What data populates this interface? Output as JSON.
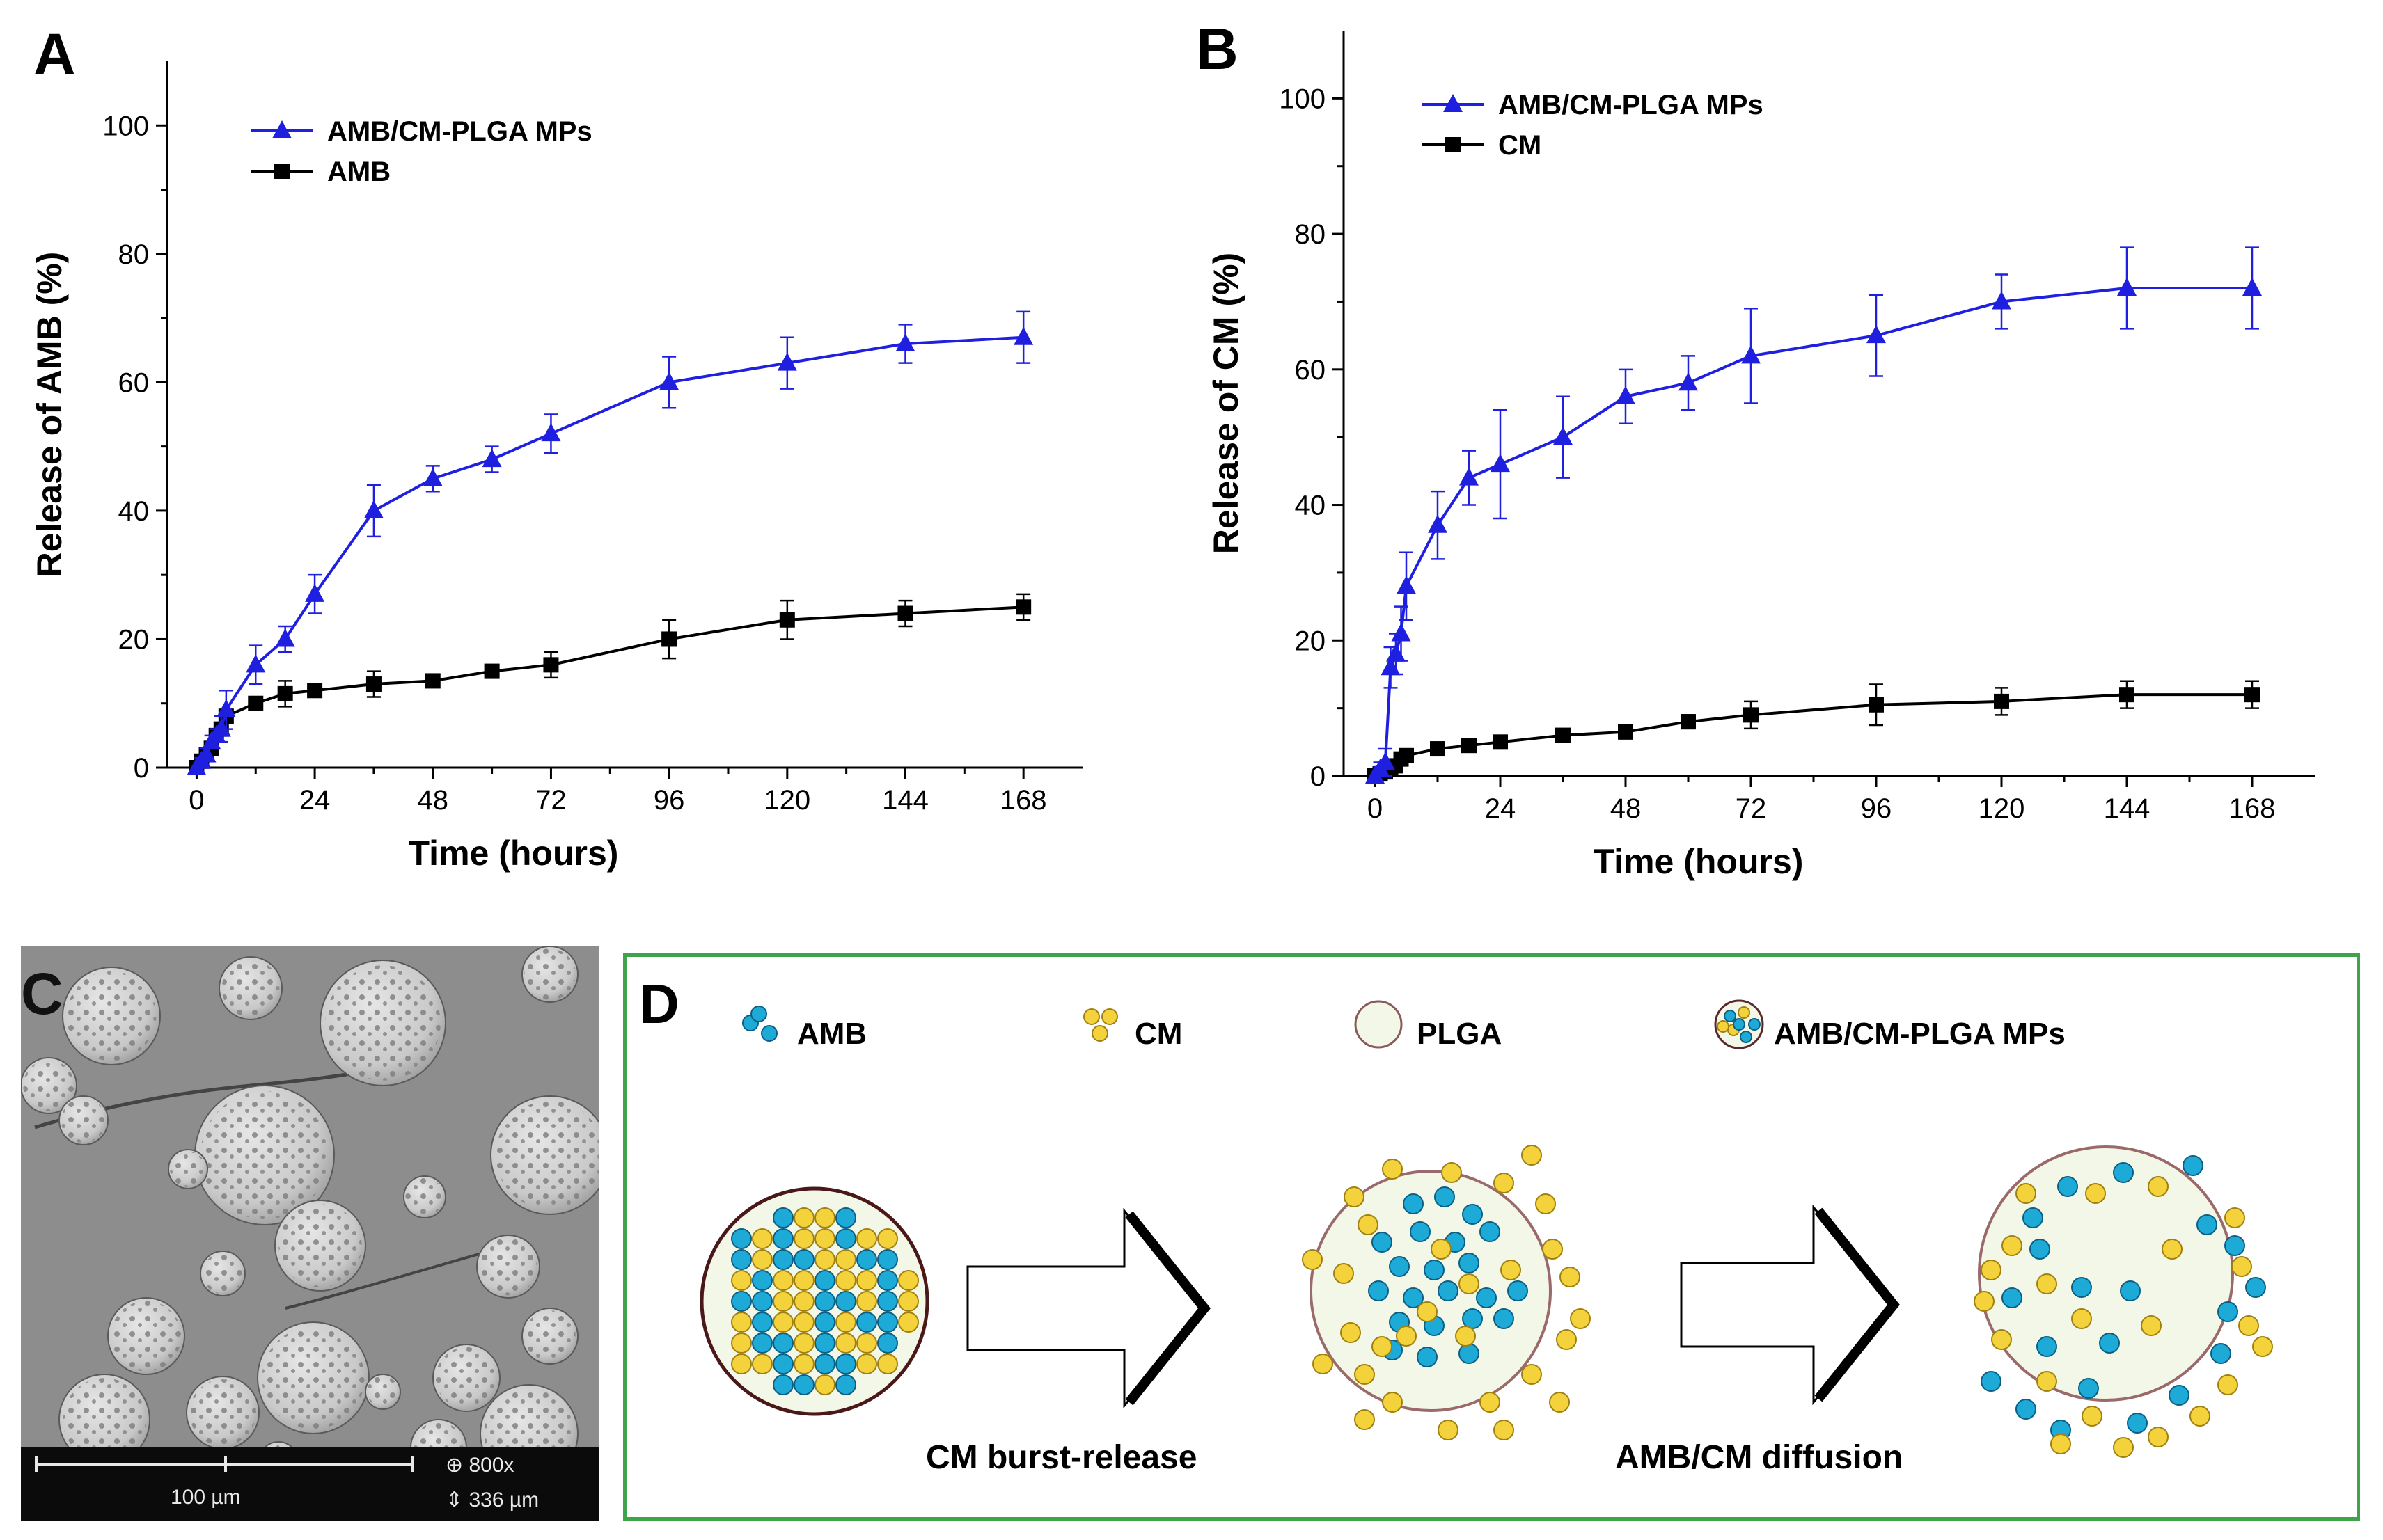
{
  "panels": {
    "a": {
      "letter": "A"
    },
    "b": {
      "letter": "B"
    },
    "c": {
      "letter": "C",
      "scale_label": "100 µm",
      "magnification": "800x",
      "field_width": "336 µm"
    },
    "d": {
      "letter": "D",
      "legend": {
        "amb": "AMB",
        "cm": "CM",
        "plga": "PLGA",
        "mps": "AMB/CM-PLGA  MPs"
      },
      "step1": "CM burst-release",
      "step2": "AMB/CM diffusion"
    }
  },
  "colors": {
    "blue_series": "#1f1fe0",
    "black_series": "#000000",
    "amb_particle": "#1eaad6",
    "cm_particle": "#f3d23c",
    "plga": "#f2f7e8",
    "frame": "#3ea34a"
  },
  "chart_data": [
    {
      "type": "line",
      "title": "",
      "xlabel": "Time (hours)",
      "ylabel": "Release of AMB (%)",
      "xlim": [
        -6,
        180
      ],
      "ylim": [
        0,
        110
      ],
      "xticks": [
        0,
        24,
        48,
        72,
        96,
        120,
        144,
        168
      ],
      "yticks": [
        0,
        20,
        40,
        60,
        80,
        100
      ],
      "legend_position": "top-left",
      "series": [
        {
          "name": "AMB/CM-PLGA MPs",
          "marker": "triangle",
          "color": "#1f1fe0",
          "x": [
            0,
            1,
            2,
            3,
            4,
            5,
            6,
            12,
            18,
            24,
            36,
            48,
            60,
            72,
            96,
            120,
            144,
            168
          ],
          "y": [
            0,
            1,
            2,
            4,
            5,
            6,
            9,
            16,
            20,
            27,
            40,
            45,
            48,
            52,
            60,
            63,
            66,
            67
          ],
          "err": [
            0,
            0.5,
            1,
            1,
            1,
            2,
            3,
            3,
            2,
            3,
            4,
            2,
            2,
            3,
            4,
            4,
            3,
            4
          ]
        },
        {
          "name": "AMB",
          "marker": "square",
          "color": "#000000",
          "x": [
            0,
            1,
            2,
            3,
            4,
            5,
            6,
            12,
            18,
            24,
            36,
            48,
            60,
            72,
            96,
            120,
            144,
            168
          ],
          "y": [
            0,
            1,
            2,
            3,
            5,
            6,
            8,
            10,
            11.5,
            12,
            13,
            13.5,
            15,
            16,
            20,
            23,
            24,
            25
          ],
          "err": [
            0,
            0.5,
            0.5,
            1,
            1,
            1,
            1,
            1,
            2,
            1,
            2,
            1,
            1,
            2,
            3,
            3,
            2,
            2
          ]
        }
      ]
    },
    {
      "type": "line",
      "title": "",
      "xlabel": "Time (hours)",
      "ylabel": "Release of CM (%)",
      "xlim": [
        -6,
        180
      ],
      "ylim": [
        0,
        110
      ],
      "xticks": [
        0,
        24,
        48,
        72,
        96,
        120,
        144,
        168
      ],
      "yticks": [
        0,
        20,
        40,
        60,
        80,
        100
      ],
      "legend_position": "top-left",
      "series": [
        {
          "name": "AMB/CM-PLGA MPs",
          "marker": "triangle",
          "color": "#1f1fe0",
          "x": [
            0,
            1,
            2,
            3,
            4,
            5,
            6,
            12,
            18,
            24,
            36,
            48,
            60,
            72,
            96,
            120,
            144,
            168
          ],
          "y": [
            0,
            1,
            2,
            16,
            18,
            21,
            28,
            37,
            44,
            46,
            50,
            56,
            58,
            62,
            65,
            70,
            72,
            72
          ],
          "err": [
            0,
            1,
            2,
            3,
            3,
            4,
            5,
            5,
            4,
            8,
            6,
            4,
            4,
            7,
            6,
            4,
            6,
            6
          ]
        },
        {
          "name": "CM",
          "marker": "square",
          "color": "#000000",
          "x": [
            0,
            1,
            2,
            3,
            4,
            5,
            6,
            12,
            18,
            24,
            36,
            48,
            60,
            72,
            96,
            120,
            144,
            168
          ],
          "y": [
            0,
            0.3,
            0.6,
            1,
            1.5,
            2.5,
            3,
            4,
            4.5,
            5,
            6,
            6.5,
            8,
            9,
            10.5,
            11,
            12,
            12
          ],
          "err": [
            0,
            0.3,
            0.3,
            0.5,
            0.5,
            0.5,
            0.5,
            0.5,
            0.5,
            0.5,
            0.5,
            1,
            1,
            2,
            3,
            2,
            2,
            2
          ]
        }
      ]
    }
  ]
}
